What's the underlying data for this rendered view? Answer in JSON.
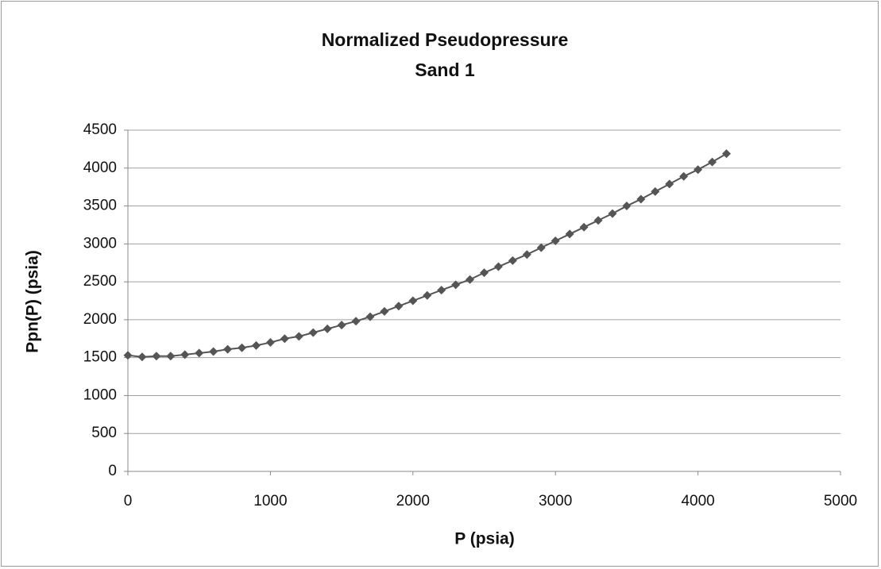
{
  "chart_data": {
    "type": "scatter-line",
    "title": "Normalized Pseudopressure",
    "subtitle": "Sand 1",
    "x_label": "P (psia)",
    "y_label": "Ppn(P) (psia)",
    "series": [
      {
        "color": "#555555",
        "x": [
          0,
          100,
          200,
          300,
          400,
          500,
          600,
          700,
          800,
          900,
          1000,
          1100,
          1200,
          1300,
          1400,
          1500,
          1600,
          1700,
          1800,
          1900,
          2000,
          2100,
          2200,
          2300,
          2400,
          2500,
          2600,
          2700,
          2800,
          2900,
          3000,
          3100,
          3200,
          3300,
          3400,
          3500,
          3600,
          3700,
          3800,
          3900,
          4000,
          4100,
          4200
        ],
        "values": [
          1530,
          1510,
          1520,
          1520,
          1540,
          1560,
          1580,
          1610,
          1630,
          1660,
          1700,
          1750,
          1780,
          1830,
          1880,
          1930,
          1980,
          2040,
          2110,
          2180,
          2250,
          2320,
          2390,
          2460,
          2530,
          2620,
          2700,
          2780,
          2860,
          2950,
          3040,
          3130,
          3220,
          3310,
          3400,
          3500,
          3590,
          3690,
          3790,
          3890,
          3980,
          4080,
          4190
        ]
      }
    ],
    "xlim": [
      0,
      5000
    ],
    "xticks": [
      0,
      1000,
      2000,
      3000,
      4000,
      5000
    ],
    "ylim": [
      0,
      4500
    ],
    "yticks": [
      0,
      500,
      1000,
      1500,
      2000,
      2500,
      3000,
      3500,
      4000,
      4500
    ],
    "grid": true
  }
}
